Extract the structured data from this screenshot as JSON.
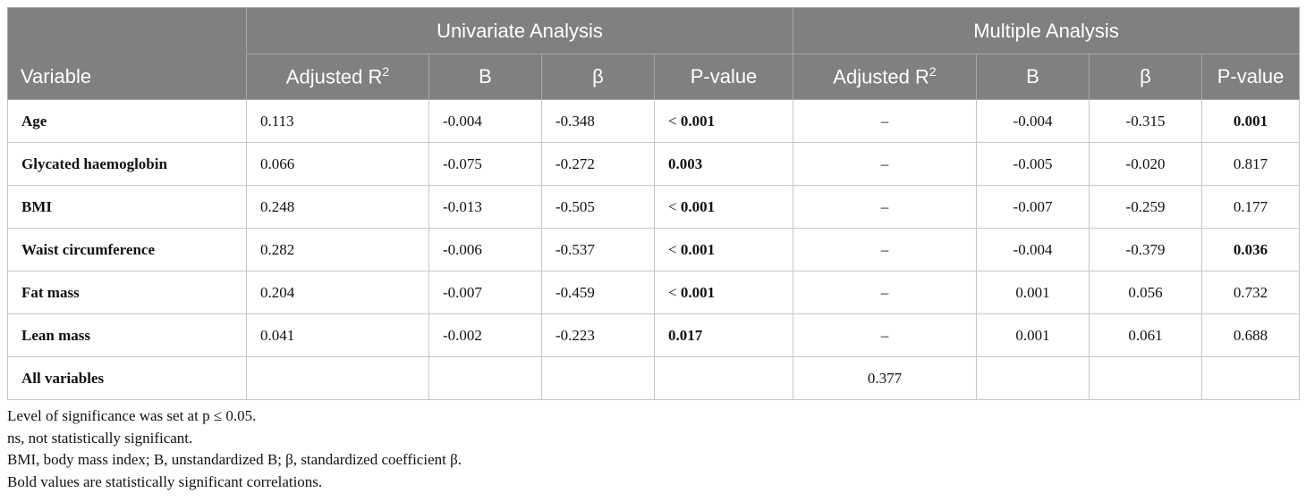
{
  "table": {
    "header": {
      "variable": "Variable",
      "groups": [
        "Univariate Analysis",
        "Multiple Analysis"
      ],
      "columns": [
        {
          "text": "Adjusted R",
          "sup": "2"
        },
        "B",
        "β",
        "P-value",
        {
          "text": "Adjusted R",
          "sup": "2"
        },
        "B",
        "β",
        "P-value"
      ]
    },
    "rows": [
      [
        "Age",
        "0.113",
        "-0.004",
        "-0.348",
        {
          "prefix": "<",
          "text": "0.001",
          "bold": true
        },
        "–",
        "-0.004",
        "-0.315",
        {
          "text": "0.001",
          "bold": true
        }
      ],
      [
        "Glycated haemoglobin",
        "0.066",
        "-0.075",
        "-0.272",
        {
          "text": "0.003",
          "bold": true
        },
        "–",
        "-0.005",
        "-0.020",
        "0.817"
      ],
      [
        "BMI",
        "0.248",
        "-0.013",
        "-0.505",
        {
          "prefix": "<",
          "text": "0.001",
          "bold": true
        },
        "–",
        "-0.007",
        "-0.259",
        "0.177"
      ],
      [
        "Waist circumference",
        "0.282",
        "-0.006",
        "-0.537",
        {
          "prefix": "<",
          "text": "0.001",
          "bold": true
        },
        "–",
        "-0.004",
        "-0.379",
        {
          "text": "0.036",
          "bold": true
        }
      ],
      [
        "Fat mass",
        "0.204",
        "-0.007",
        "-0.459",
        {
          "prefix": "<",
          "text": "0.001",
          "bold": true
        },
        "–",
        "0.001",
        "0.056",
        "0.732"
      ],
      [
        "Lean mass",
        "0.041",
        "-0.002",
        "-0.223",
        {
          "text": "0.017",
          "bold": true
        },
        "–",
        "0.001",
        "0.061",
        "0.688"
      ],
      [
        "All variables",
        null,
        null,
        null,
        null,
        "0.377",
        null,
        null,
        null
      ]
    ]
  },
  "notes": [
    "Level of significance was set at p ≤ 0.05.",
    "ns, not statistically significant.",
    "BMI, body mass index; B, unstandardized B; β, standardized coefficient β.",
    "Bold values are statistically significant correlations."
  ]
}
